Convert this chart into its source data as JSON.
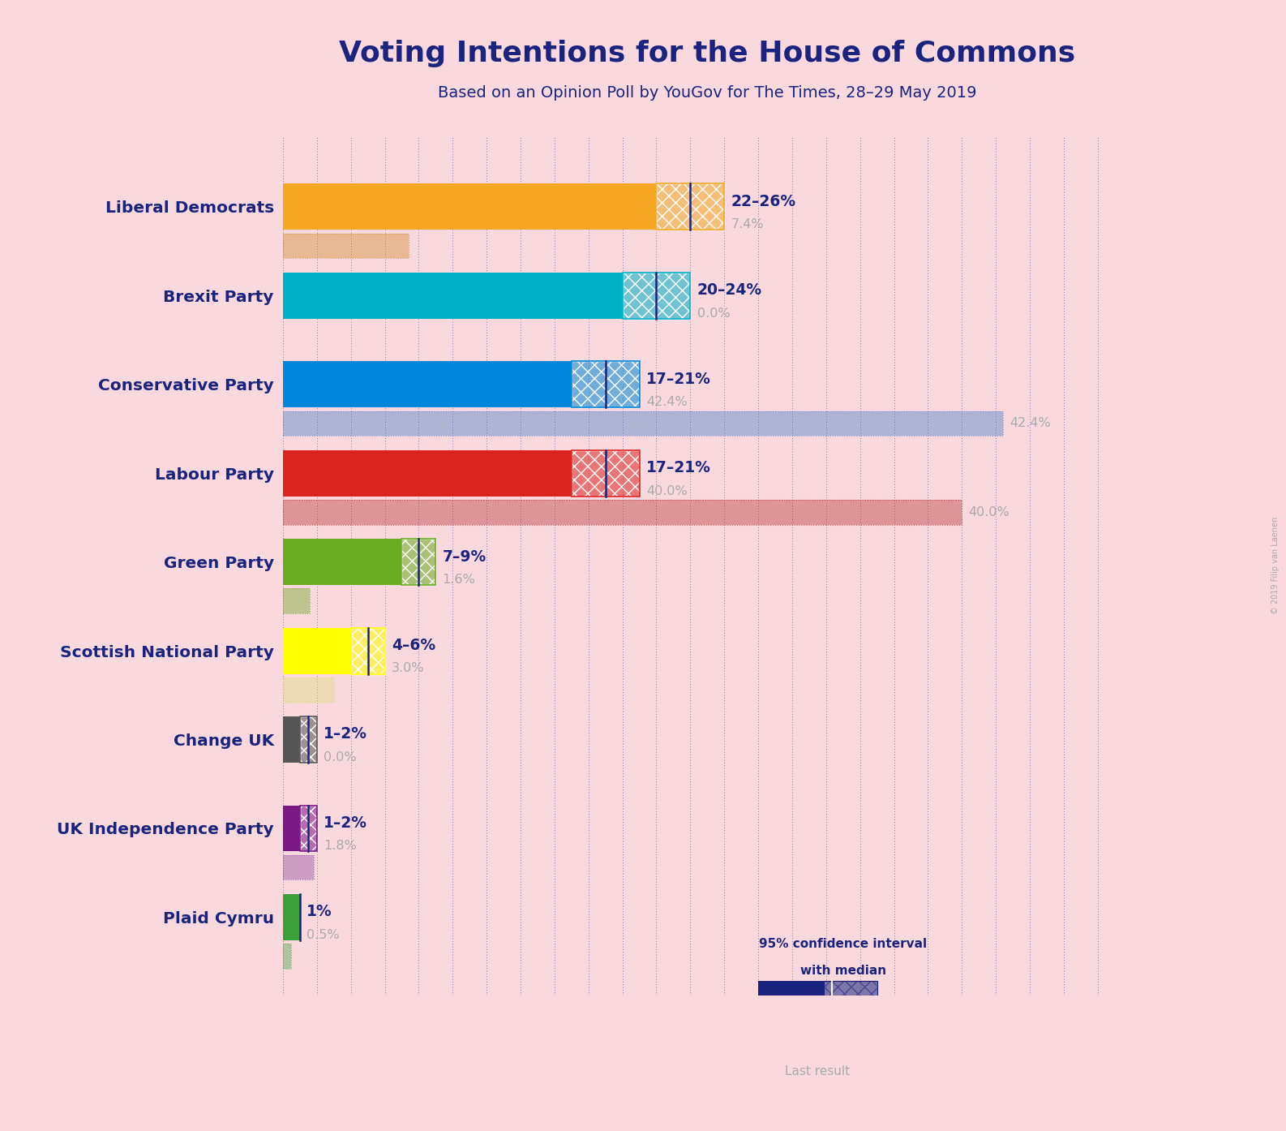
{
  "title": "Voting Intentions for the House of Commons",
  "subtitle": "Based on an Opinion Poll by YouGov for The Times, 28–29 May 2019",
  "copyright": "© 2019 Filip van Laenen",
  "background_color": "#f9d9dd",
  "parties": [
    "Liberal Democrats",
    "Brexit Party",
    "Conservative Party",
    "Labour Party",
    "Green Party",
    "Scottish National Party",
    "Change UK",
    "UK Independence Party",
    "Plaid Cymru"
  ],
  "median_values": [
    24,
    22,
    19,
    19,
    8,
    5,
    1.5,
    1.5,
    1
  ],
  "low_values": [
    22,
    20,
    17,
    17,
    7,
    4,
    1,
    1,
    1
  ],
  "high_values": [
    26,
    24,
    21,
    21,
    9,
    6,
    2,
    2,
    1
  ],
  "last_results": [
    7.4,
    0.0,
    42.4,
    40.0,
    1.6,
    3.0,
    0.0,
    1.8,
    0.5
  ],
  "range_labels": [
    "22–26%",
    "20–24%",
    "17–21%",
    "17–21%",
    "7–9%",
    "4–6%",
    "1–2%",
    "1–2%",
    "1%"
  ],
  "party_colors": [
    "#F5A623",
    "#00B0C8",
    "#0087DC",
    "#DC241F",
    "#6AAC20",
    "#FFFF00",
    "#555555",
    "#7B1884",
    "#3A9E3A"
  ],
  "last_result_colors": [
    "#D4903A",
    "#22AACC",
    "#5588CC",
    "#BB4444",
    "#7AAC30",
    "#DDDD88",
    "#888888",
    "#9955AA",
    "#55AA55"
  ],
  "title_color": "#1a237e",
  "subtitle_color": "#1a237e",
  "label_color": "#1a237e",
  "range_label_color": "#1a237e",
  "last_result_label_color": "#aaaaaa",
  "xmax": 50,
  "bar_height": 0.52,
  "last_bar_height": 0.28,
  "bar_gap": 1.0,
  "tick_interval": 2
}
